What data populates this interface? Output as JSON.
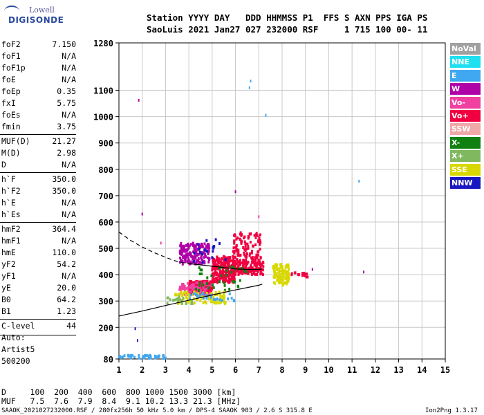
{
  "logo": {
    "brand_top": "Lowell",
    "brand_bottom": "DIGISONDE"
  },
  "header": {
    "line1": "Station YYYY DAY   DDD HHMMSS P1  FFS S AXN PPS IGA PS",
    "line2": "SaoLuis 2021 Jan27 027 232000 RSF     1 715 100 00- 11"
  },
  "params": [
    {
      "group": [
        {
          "k": "foF2",
          "v": "7.150"
        },
        {
          "k": "foF1",
          "v": "N/A"
        },
        {
          "k": "foF1p",
          "v": "N/A"
        },
        {
          "k": "foE",
          "v": "N/A"
        },
        {
          "k": "foEp",
          "v": "0.35"
        },
        {
          "k": "fxI",
          "v": "5.75"
        },
        {
          "k": "foEs",
          "v": "N/A"
        },
        {
          "k": "fmin",
          "v": "3.75"
        }
      ]
    },
    {
      "group": [
        {
          "k": "MUF(D)",
          "v": "21.27"
        },
        {
          "k": "M(D)",
          "v": "2.98"
        },
        {
          "k": "D",
          "v": "N/A"
        }
      ]
    },
    {
      "group": [
        {
          "k": "h`F",
          "v": "350.0"
        },
        {
          "k": "h`F2",
          "v": "350.0"
        },
        {
          "k": "h`E",
          "v": "N/A"
        },
        {
          "k": "h`Es",
          "v": "N/A"
        }
      ]
    },
    {
      "group": [
        {
          "k": "hmF2",
          "v": "364.4"
        },
        {
          "k": "hmF1",
          "v": "N/A"
        },
        {
          "k": "hmE",
          "v": "110.0"
        },
        {
          "k": "yF2",
          "v": "54.2"
        },
        {
          "k": "yF1",
          "v": "N/A"
        },
        {
          "k": "yE",
          "v": "20.0"
        },
        {
          "k": "B0",
          "v": "64.2"
        },
        {
          "k": "B1",
          "v": "1.23"
        }
      ]
    },
    {
      "group": [
        {
          "k": "C-level",
          "v": "44"
        }
      ]
    }
  ],
  "extra": {
    "auto": "Auto:",
    "artist": "Artist5",
    "code": "500200"
  },
  "legend": [
    {
      "label": "NoVal",
      "color": "#a0a0a0"
    },
    {
      "label": "NNE",
      "color": "#1ee0f0"
    },
    {
      "label": "E",
      "color": "#40a8f0"
    },
    {
      "label": "W",
      "color": "#b000a8"
    },
    {
      "label": "Vo-",
      "color": "#f040a0"
    },
    {
      "label": "Vo+",
      "color": "#f00040"
    },
    {
      "label": "SSW",
      "color": "#f0a8a8"
    },
    {
      "label": "X-",
      "color": "#108010"
    },
    {
      "label": "X+",
      "color": "#80b860"
    },
    {
      "label": "SSE",
      "color": "#d8d800"
    },
    {
      "label": "NNW",
      "color": "#1818c0"
    }
  ],
  "bottom": {
    "line1": "D     100  200  400  600  800 1000 1500 3000 [km]",
    "line2": "MUF   7.5  7.6  7.9  8.4  9.1 10.2 13.3 21.3 [MHz]"
  },
  "footer": "SAAOK_2021027232000.RSF / 280fx256h 50 kHz 5.0 km / DPS-4 SAAOK 903 / 2.6 S 315.8 E",
  "version": "Ion2Png 1.3.17",
  "chart_data": {
    "type": "scatter",
    "xlim": [
      1,
      15
    ],
    "ylim": [
      80,
      1280
    ],
    "xticks": [
      1,
      2,
      3,
      4,
      5,
      6,
      7,
      8,
      9,
      10,
      11,
      12,
      13,
      14,
      15
    ],
    "yticks": [
      80,
      200,
      300,
      400,
      500,
      600,
      700,
      800,
      900,
      1000,
      1100,
      1280
    ],
    "grid": true,
    "profile_solid": [
      [
        1.0,
        243
      ],
      [
        2.0,
        262
      ],
      [
        3.0,
        283
      ],
      [
        4.0,
        303
      ],
      [
        5.0,
        323
      ],
      [
        6.0,
        342
      ],
      [
        7.0,
        360
      ],
      [
        7.15,
        364
      ]
    ],
    "profile_dashed": [
      [
        1.0,
        562
      ],
      [
        1.5,
        530
      ],
      [
        2.0,
        505
      ],
      [
        2.5,
        484
      ],
      [
        3.0,
        466
      ],
      [
        3.5,
        450
      ],
      [
        4.0,
        442
      ]
    ],
    "trace_solid": [
      [
        4.0,
        442
      ],
      [
        5.0,
        432
      ],
      [
        6.0,
        422
      ],
      [
        6.5,
        420
      ],
      [
        7.0,
        420
      ],
      [
        7.15,
        422
      ]
    ],
    "clusters": [
      {
        "x": [
          4.0,
          5.0
        ],
        "y": [
          325,
          375
        ],
        "color": "#f00040",
        "n": 260
      },
      {
        "x": [
          5.0,
          6.0
        ],
        "y": [
          370,
          470
        ],
        "color": "#f00040",
        "n": 260
      },
      {
        "x": [
          5.9,
          7.1
        ],
        "y": [
          410,
          560
        ],
        "color": "#f00040",
        "n": 170
      },
      {
        "x": [
          6.0,
          7.2
        ],
        "y": [
          400,
          455
        ],
        "color": "#f00040",
        "n": 110
      },
      {
        "x": [
          3.6,
          4.9
        ],
        "y": [
          440,
          520
        ],
        "color": "#b000a8",
        "n": 170
      },
      {
        "x": [
          3.6,
          5.0
        ],
        "y": [
          320,
          370
        ],
        "color": "#f040a0",
        "n": 90
      },
      {
        "x": [
          4.3,
          6.5
        ],
        "y": [
          340,
          430
        ],
        "color": "#108010",
        "n": 40
      },
      {
        "x": [
          3.4,
          5.6
        ],
        "y": [
          290,
          335
        ],
        "color": "#d8d800",
        "n": 90
      },
      {
        "x": [
          7.6,
          8.3
        ],
        "y": [
          360,
          440
        ],
        "color": "#d8d800",
        "n": 120
      },
      {
        "x": [
          8.4,
          9.1
        ],
        "y": [
          390,
          410
        ],
        "color": "#f00040",
        "n": 18
      },
      {
        "x": [
          4.0,
          6.0
        ],
        "y": [
          300,
          330
        ],
        "color": "#40a8f0",
        "n": 25
      },
      {
        "x": [
          1.0,
          3.0
        ],
        "y": [
          82,
          94
        ],
        "color": "#40a8f0",
        "n": 45
      },
      {
        "x": [
          4.2,
          5.6
        ],
        "y": [
          440,
          540
        ],
        "color": "#1818c0",
        "n": 20
      },
      {
        "x": [
          3.0,
          4.2
        ],
        "y": [
          290,
          320
        ],
        "color": "#80b860",
        "n": 18
      }
    ],
    "isolated_points": [
      {
        "x": 1.85,
        "y": 1062,
        "color": "#b000a8"
      },
      {
        "x": 7.3,
        "y": 1005,
        "color": "#40a8f0"
      },
      {
        "x": 6.6,
        "y": 1110,
        "color": "#40a8f0"
      },
      {
        "x": 6.65,
        "y": 1135,
        "color": "#40a8f0"
      },
      {
        "x": 11.3,
        "y": 755,
        "color": "#40a8f0"
      },
      {
        "x": 2.0,
        "y": 630,
        "color": "#b000a8"
      },
      {
        "x": 6.0,
        "y": 715,
        "color": "#b000a8"
      },
      {
        "x": 11.5,
        "y": 410,
        "color": "#b000a8"
      },
      {
        "x": 9.3,
        "y": 420,
        "color": "#b000a8"
      },
      {
        "x": 1.7,
        "y": 195,
        "color": "#1818c0"
      },
      {
        "x": 1.8,
        "y": 150,
        "color": "#1818c0"
      },
      {
        "x": 7.0,
        "y": 620,
        "color": "#f040a0"
      },
      {
        "x": 2.8,
        "y": 520,
        "color": "#f040a0"
      }
    ]
  }
}
